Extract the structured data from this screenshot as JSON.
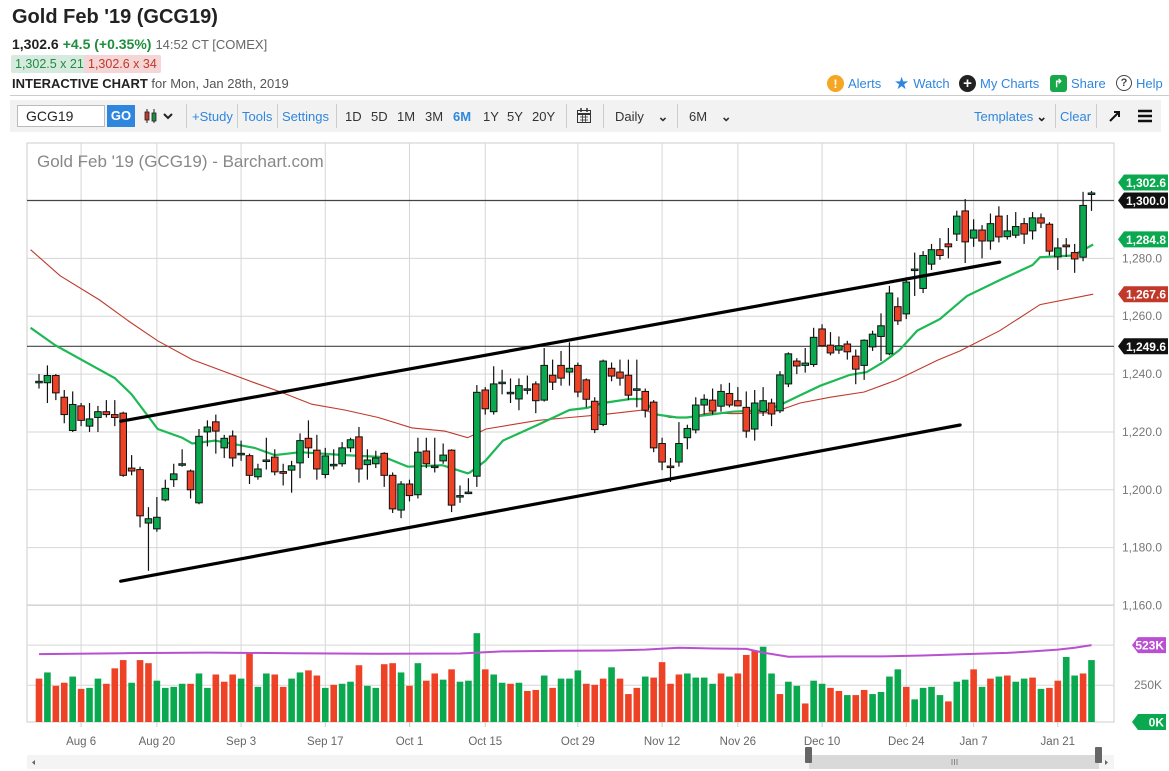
{
  "header": {
    "title": "Gold Feb '19 (GCG19)",
    "last": "1,302.6",
    "change": "+4.5 (+0.35%)",
    "time": "14:52 CT [COMEX]",
    "bid": "1,302.5 x 21",
    "ask": "1,302.6 x 34",
    "interactive_label": "INTERACTIVE CHART",
    "interactive_for": "for Mon, Jan 28th, 2019"
  },
  "top_links": {
    "alerts": "Alerts",
    "watch": "Watch",
    "my_charts": "My Charts",
    "share": "Share",
    "help": "Help"
  },
  "toolbar": {
    "symbol_value": "GCG19",
    "go": "GO",
    "study": "+Study",
    "tools": "Tools",
    "settings": "Settings",
    "ranges": [
      "1D",
      "5D",
      "1M",
      "3M",
      "6M",
      "1Y",
      "5Y",
      "20Y"
    ],
    "selected_range": "6M",
    "interval": "Daily",
    "period": "6M",
    "templates": "Templates",
    "clear": "Clear"
  },
  "colors": {
    "up": "#0aa84f",
    "down": "#ee4226",
    "ma_short": "#1db954",
    "ma_long": "#c0392b",
    "open_interest": "#b94fd1",
    "accent": "#2f86de"
  },
  "chart_data": {
    "type": "candlestick",
    "title": "Gold Feb '19 (GCG19) - Barchart.com",
    "ylim": [
      1160,
      1310
    ],
    "y_ticks": [
      "1,280.0",
      "1,260.0",
      "1,240.0",
      "1,220.0",
      "1,200.0",
      "1,180.0",
      "1,160.0"
    ],
    "y_tick_values": [
      1280,
      1260,
      1240,
      1220,
      1200,
      1180,
      1160
    ],
    "x_labels": [
      {
        "label": "Aug 6",
        "index": 5
      },
      {
        "label": "Aug 20",
        "index": 14
      },
      {
        "label": "Sep 3",
        "index": 24
      },
      {
        "label": "Sep 17",
        "index": 34
      },
      {
        "label": "Oct 1",
        "index": 44
      },
      {
        "label": "Oct 15",
        "index": 53
      },
      {
        "label": "Oct 29",
        "index": 64
      },
      {
        "label": "Nov 12",
        "index": 74
      },
      {
        "label": "Nov 26",
        "index": 83
      },
      {
        "label": "Dec 10",
        "index": 93
      },
      {
        "label": "Dec 24",
        "index": 103
      },
      {
        "label": "Jan 7",
        "index": 111
      },
      {
        "label": "Jan 21",
        "index": 121
      }
    ],
    "ohlc": [
      [
        1237,
        1240,
        1235,
        1237.5
      ],
      [
        1237,
        1243,
        1230,
        1239.5
      ],
      [
        1239.5,
        1240,
        1231,
        1233.5
      ],
      [
        1232,
        1234.5,
        1223,
        1226
      ],
      [
        1220.5,
        1234,
        1220,
        1229.5
      ],
      [
        1229,
        1230,
        1222,
        1224
      ],
      [
        1222,
        1230,
        1220,
        1224.5
      ],
      [
        1225,
        1229,
        1220,
        1227
      ],
      [
        1227,
        1231,
        1225,
        1226
      ],
      [
        1226,
        1231,
        1222,
        1225
      ],
      [
        1226.5,
        1227,
        1204.5,
        1205
      ],
      [
        1207.5,
        1212,
        1205,
        1206.5
      ],
      [
        1207,
        1208,
        1187,
        1191
      ],
      [
        1188.5,
        1194,
        1172,
        1190
      ],
      [
        1186.5,
        1197.5,
        1185.5,
        1190.5
      ],
      [
        1196.5,
        1203.5,
        1196,
        1200.5
      ],
      [
        1203.5,
        1209,
        1201,
        1205.5
      ],
      [
        1208.5,
        1214,
        1208,
        1209
      ],
      [
        1206.5,
        1207,
        1197,
        1200
      ],
      [
        1195.5,
        1221,
        1195,
        1218.5
      ],
      [
        1220,
        1224,
        1215,
        1221.7
      ],
      [
        1223.5,
        1226,
        1212.5,
        1220.3
      ],
      [
        1214.5,
        1219,
        1211,
        1217.8
      ],
      [
        1218.6,
        1220.5,
        1208,
        1211
      ],
      [
        1212.3,
        1217,
        1210,
        1212.6
      ],
      [
        1211.8,
        1212.5,
        1202,
        1205
      ],
      [
        1204.5,
        1209,
        1203.5,
        1207.2
      ],
      [
        1210,
        1218,
        1207,
        1210.3
      ],
      [
        1211.3,
        1214,
        1205,
        1206.2
      ],
      [
        1206.3,
        1209,
        1201.5,
        1205.7
      ],
      [
        1206.8,
        1210,
        1199,
        1208.3
      ],
      [
        1209.3,
        1219.5,
        1204,
        1217
      ],
      [
        1217.8,
        1224,
        1211,
        1214.5
      ],
      [
        1213.7,
        1219,
        1203.5,
        1207.2
      ],
      [
        1205.3,
        1214.5,
        1204,
        1211.7
      ],
      [
        1208.5,
        1214,
        1207,
        1208.8
      ],
      [
        1209,
        1216.5,
        1208,
        1214.5
      ],
      [
        1214.5,
        1218,
        1213,
        1217.3
      ],
      [
        1218.3,
        1221.7,
        1202.5,
        1207.2
      ],
      [
        1208.7,
        1214,
        1203.5,
        1210.3
      ],
      [
        1209,
        1213.5,
        1207.5,
        1211
      ],
      [
        1212.6,
        1213,
        1201,
        1205
      ],
      [
        1205,
        1206,
        1192,
        1193.4
      ],
      [
        1193,
        1203,
        1190.2,
        1202
      ],
      [
        1202,
        1203.5,
        1196,
        1198
      ],
      [
        1198.3,
        1218,
        1197,
        1213
      ],
      [
        1213.4,
        1218,
        1207.5,
        1209
      ],
      [
        1208,
        1218,
        1206,
        1208.2
      ],
      [
        1210,
        1216,
        1209,
        1212
      ],
      [
        1213.7,
        1214,
        1192.3,
        1194.7
      ],
      [
        1197.8,
        1201.5,
        1195.5,
        1198
      ],
      [
        1199,
        1204,
        1198.5,
        1199.2
      ],
      [
        1204.7,
        1236.2,
        1201,
        1233.7
      ],
      [
        1234.5,
        1235.5,
        1226,
        1228
      ],
      [
        1227,
        1242.7,
        1226,
        1236.6
      ],
      [
        1237,
        1241.5,
        1233,
        1237.2
      ],
      [
        1233.5,
        1238.5,
        1230,
        1233.7
      ],
      [
        1231.4,
        1238.5,
        1227.5,
        1236
      ],
      [
        1234.7,
        1239.5,
        1233,
        1234.9
      ],
      [
        1236.6,
        1237.5,
        1226.5,
        1230.8
      ],
      [
        1231,
        1249,
        1230.5,
        1243
      ],
      [
        1239.6,
        1245,
        1234.5,
        1237.2
      ],
      [
        1243,
        1248,
        1236,
        1238.6
      ],
      [
        1240.7,
        1251,
        1236,
        1242
      ],
      [
        1243,
        1244,
        1232,
        1233.8
      ],
      [
        1238,
        1238.5,
        1228.5,
        1231.3
      ],
      [
        1230.6,
        1232,
        1219.6,
        1220.8
      ],
      [
        1222.6,
        1245,
        1222,
        1244.5
      ],
      [
        1242,
        1244,
        1237.5,
        1239.3
      ],
      [
        1240.7,
        1245,
        1236,
        1238.6
      ],
      [
        1239.6,
        1245,
        1231,
        1232.7
      ],
      [
        1234.7,
        1245,
        1228.5,
        1234.9
      ],
      [
        1234,
        1235,
        1225,
        1227.5
      ],
      [
        1230.3,
        1231,
        1213,
        1214.5
      ],
      [
        1216,
        1218,
        1206.8,
        1209.6
      ],
      [
        1208.2,
        1211,
        1202.7,
        1208
      ],
      [
        1209.6,
        1223.4,
        1208,
        1216
      ],
      [
        1218,
        1222.5,
        1214,
        1221.2
      ],
      [
        1220.7,
        1232,
        1219.5,
        1229.3
      ],
      [
        1229.3,
        1233,
        1226,
        1231.3
      ],
      [
        1231,
        1235,
        1226,
        1227.2
      ],
      [
        1228.9,
        1236.5,
        1227,
        1234
      ],
      [
        1233.3,
        1237,
        1228.5,
        1229.3
      ],
      [
        1230.8,
        1235.5,
        1229,
        1229
      ],
      [
        1228.5,
        1234,
        1218,
        1220.3
      ],
      [
        1221,
        1234.5,
        1217,
        1230
      ],
      [
        1227,
        1235.5,
        1225.5,
        1230.8
      ],
      [
        1230,
        1231.5,
        1222,
        1226.2
      ],
      [
        1227.3,
        1241,
        1226.5,
        1239.7
      ],
      [
        1236.6,
        1247.5,
        1235.5,
        1247
      ],
      [
        1244.5,
        1245.5,
        1240,
        1242.8
      ],
      [
        1243,
        1249,
        1240.5,
        1243.8
      ],
      [
        1243.3,
        1256,
        1242.5,
        1252.7
      ],
      [
        1255.6,
        1257.2,
        1249.5,
        1249.8
      ],
      [
        1250,
        1254.5,
        1246.5,
        1247.3
      ],
      [
        1248.3,
        1253,
        1247,
        1249.8
      ],
      [
        1250.4,
        1251.5,
        1245,
        1247.7
      ],
      [
        1246.2,
        1248.5,
        1236.5,
        1241.7
      ],
      [
        1243,
        1252,
        1238,
        1251.7
      ],
      [
        1249.4,
        1255,
        1248,
        1253.8
      ],
      [
        1253,
        1261,
        1244.5,
        1256.7
      ],
      [
        1247,
        1270.5,
        1246.5,
        1268
      ],
      [
        1263.3,
        1266.5,
        1257,
        1258.4
      ],
      [
        1260.8,
        1273.5,
        1259,
        1271.8
      ],
      [
        1275.8,
        1282,
        1267,
        1276.3
      ],
      [
        1269.6,
        1282.5,
        1268,
        1281
      ],
      [
        1278,
        1285,
        1276,
        1283
      ],
      [
        1283,
        1287,
        1279.5,
        1281
      ],
      [
        1285,
        1290.5,
        1280,
        1284
      ],
      [
        1288.4,
        1296.5,
        1286,
        1294.6
      ],
      [
        1296.4,
        1300.5,
        1278.4,
        1285.7
      ],
      [
        1287,
        1293.5,
        1284,
        1289.8
      ],
      [
        1289.8,
        1291.5,
        1280,
        1286
      ],
      [
        1286,
        1295.5,
        1283,
        1292
      ],
      [
        1294.6,
        1298,
        1285.5,
        1287.4
      ],
      [
        1287.5,
        1295,
        1286.5,
        1289.5
      ],
      [
        1288,
        1296,
        1287,
        1291
      ],
      [
        1292,
        1294,
        1285,
        1288.4
      ],
      [
        1289.5,
        1296,
        1286.5,
        1294
      ],
      [
        1294,
        1295.5,
        1290.5,
        1292.2
      ],
      [
        1291.8,
        1292.5,
        1281,
        1282.5
      ],
      [
        1280.5,
        1287,
        1276,
        1283.6
      ],
      [
        1284.6,
        1287,
        1280.5,
        1284
      ],
      [
        1282,
        1285,
        1275,
        1279.8
      ],
      [
        1280.4,
        1303,
        1279,
        1298.3
      ],
      [
        1302.5,
        1303.3,
        1296.4,
        1302.6
      ]
    ],
    "ma_short": [
      [
        -1,
        1256
      ],
      [
        1.9,
        1250
      ],
      [
        9,
        1238.6
      ],
      [
        11,
        1233
      ],
      [
        14.1,
        1221
      ],
      [
        17,
        1218
      ],
      [
        18.2,
        1216
      ],
      [
        20.9,
        1217
      ],
      [
        25.6,
        1214.5
      ],
      [
        28,
        1212
      ],
      [
        31,
        1213
      ],
      [
        36.3,
        1212
      ],
      [
        41,
        1211.3
      ],
      [
        43.8,
        1208
      ],
      [
        47.9,
        1208.5
      ],
      [
        50.9,
        1205.7
      ],
      [
        51.2,
        1206
      ],
      [
        53,
        1210
      ],
      [
        55.1,
        1217
      ],
      [
        59.2,
        1222.4
      ],
      [
        63,
        1227.6
      ],
      [
        65.1,
        1228.3
      ],
      [
        67,
        1230
      ],
      [
        70.2,
        1231.4
      ],
      [
        71.7,
        1231.4
      ],
      [
        73.4,
        1226
      ],
      [
        75.8,
        1225
      ],
      [
        76.9,
        1225
      ],
      [
        79.7,
        1226
      ],
      [
        82.4,
        1227
      ],
      [
        86.5,
        1227.6
      ],
      [
        88,
        1229.3
      ],
      [
        90.4,
        1232.7
      ],
      [
        92.8,
        1236
      ],
      [
        96.3,
        1239.7
      ],
      [
        98.3,
        1240.7
      ],
      [
        100.2,
        1244
      ],
      [
        102.2,
        1248.3
      ],
      [
        104.3,
        1255
      ],
      [
        107,
        1259
      ],
      [
        108.2,
        1262
      ],
      [
        110.2,
        1267
      ],
      [
        114.1,
        1272.5
      ],
      [
        118,
        1277.7
      ],
      [
        118.9,
        1280.4
      ],
      [
        122.8,
        1281
      ],
      [
        125.2,
        1284.8
      ]
    ],
    "ma_long": [
      [
        -1,
        1283
      ],
      [
        2.5,
        1274
      ],
      [
        7.2,
        1265.6
      ],
      [
        10.8,
        1258
      ],
      [
        14.1,
        1251.5
      ],
      [
        18.2,
        1245
      ],
      [
        25.6,
        1237
      ],
      [
        28.5,
        1234
      ],
      [
        32.4,
        1229.6
      ],
      [
        36.3,
        1227.6
      ],
      [
        40.3,
        1225
      ],
      [
        44.3,
        1221.4
      ],
      [
        48.2,
        1220.3
      ],
      [
        50.9,
        1218
      ],
      [
        53.1,
        1221
      ],
      [
        59.2,
        1224
      ],
      [
        63,
        1225
      ],
      [
        67,
        1226
      ],
      [
        71.7,
        1227.6
      ],
      [
        74.9,
        1225
      ],
      [
        76.9,
        1225
      ],
      [
        79.7,
        1226.6
      ],
      [
        82.4,
        1226.3
      ],
      [
        86.5,
        1226.6
      ],
      [
        88,
        1227.6
      ],
      [
        90.4,
        1230
      ],
      [
        94,
        1232
      ],
      [
        98,
        1233.8
      ],
      [
        101.9,
        1238
      ],
      [
        106.7,
        1244.8
      ],
      [
        109.4,
        1248
      ],
      [
        114.1,
        1255
      ],
      [
        118.9,
        1264
      ],
      [
        125.2,
        1267.6
      ]
    ],
    "trendlines": [
      [
        [
          9.7,
          1223.7
        ],
        [
          114.1,
          1278.7
        ]
      ],
      [
        [
          9.7,
          1168.4
        ],
        [
          109.4,
          1222.4
        ]
      ]
    ],
    "horizontal_lines": [
      1300.0,
      1249.6
    ],
    "price_tags": [
      {
        "label": "1,302.6",
        "value": 1302.6,
        "kind": "last"
      },
      {
        "label": "1,300.0",
        "value": 1300.0,
        "kind": "line"
      },
      {
        "label": "1,284.8",
        "value": 1284.8,
        "kind": "ma_short"
      },
      {
        "label": "1,267.6",
        "value": 1267.6,
        "kind": "ma_long"
      },
      {
        "label": "1,249.6",
        "value": 1249.6,
        "kind": "line"
      }
    ],
    "volume": {
      "unit": "K",
      "ylim": [
        0,
        560
      ],
      "y_ticks": [
        "250K"
      ],
      "y_tick_values": [
        250
      ],
      "tags": [
        {
          "label": "523K",
          "value": 523,
          "kind": "open_interest"
        },
        {
          "label": "0K",
          "value": 0,
          "kind": "volume"
        }
      ],
      "values": [
        295,
        337,
        246,
        267,
        309,
        225,
        232,
        295,
        260,
        365,
        421,
        267,
        421,
        400,
        281,
        232,
        239,
        260,
        260,
        330,
        232,
        323,
        274,
        323,
        295,
        470,
        239,
        330,
        323,
        239,
        295,
        337,
        351,
        316,
        232,
        253,
        260,
        274,
        386,
        246,
        232,
        393,
        400,
        337,
        246,
        400,
        281,
        330,
        288,
        358,
        274,
        281,
        604,
        358,
        323,
        267,
        260,
        267,
        211,
        218,
        316,
        232,
        295,
        295,
        351,
        260,
        253,
        295,
        372,
        295,
        190,
        232,
        309,
        302,
        407,
        260,
        323,
        330,
        302,
        302,
        260,
        330,
        309,
        330,
        456,
        484,
        512,
        330,
        190,
        274,
        246,
        126,
        281,
        260,
        232,
        211,
        183,
        183,
        218,
        190,
        204,
        309,
        358,
        239,
        154,
        232,
        239,
        183,
        140,
        274,
        288,
        358,
        239,
        295,
        309,
        316,
        274,
        295,
        302,
        225,
        232,
        281,
        442,
        316,
        330,
        421
      ],
      "directions": "rgrrgrggrrrgrrggggrggrrrgrggrrggrrgrggrggrrgrgrrgrgggrggrgrrgrgggrrrgrrrgrrrrggggrgrrrggrggrggrrgrrggggrggggrggrgrgrggrgrrggrg",
      "open_interest": [
        [
          0,
          462
        ],
        [
          10,
          468
        ],
        [
          20,
          472
        ],
        [
          30,
          468
        ],
        [
          40,
          464
        ],
        [
          50,
          466
        ],
        [
          55,
          480
        ],
        [
          62,
          484
        ],
        [
          68,
          486
        ],
        [
          72,
          492
        ],
        [
          76,
          505
        ],
        [
          80,
          500
        ],
        [
          84,
          497
        ],
        [
          86,
          472
        ],
        [
          89,
          444
        ],
        [
          95,
          446
        ],
        [
          100,
          446
        ],
        [
          105,
          452
        ],
        [
          110,
          462
        ],
        [
          115,
          470
        ],
        [
          118,
          480
        ],
        [
          121,
          492
        ],
        [
          123,
          505
        ],
        [
          125,
          523
        ]
      ]
    }
  }
}
